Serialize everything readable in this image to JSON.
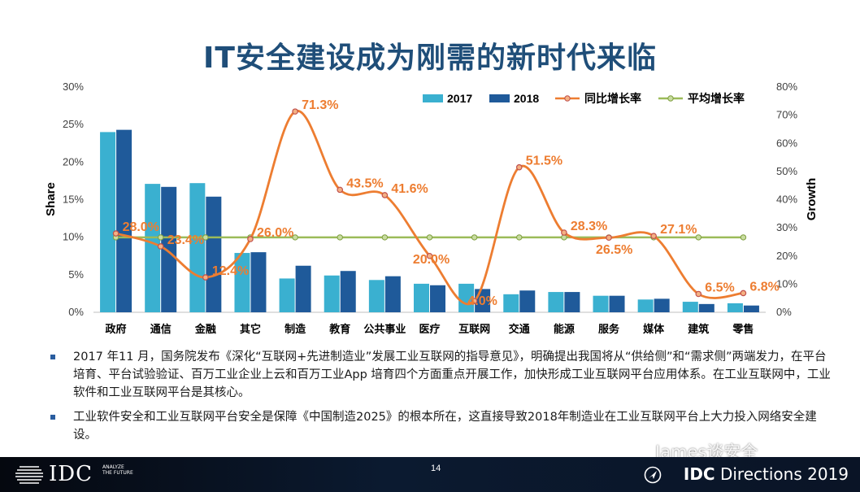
{
  "title": "IT安全建设成为刚需的新时代来临",
  "chart_data": {
    "type": "bar",
    "categories": [
      "政府",
      "通信",
      "金融",
      "其它",
      "制造",
      "教育",
      "公共事业",
      "医疗",
      "互联网",
      "交通",
      "能源",
      "服务",
      "媒体",
      "建筑",
      "零售"
    ],
    "series": [
      {
        "name": "2017",
        "axis": "left",
        "color": "#3ab0d0",
        "values": [
          24.0,
          17.1,
          17.2,
          7.9,
          4.5,
          4.9,
          4.3,
          3.8,
          3.8,
          2.4,
          2.7,
          2.2,
          1.7,
          1.4,
          1.2
        ]
      },
      {
        "name": "2018",
        "axis": "left",
        "color": "#1f5a9a",
        "values": [
          24.3,
          16.7,
          15.4,
          8.0,
          6.2,
          5.5,
          4.8,
          3.6,
          3.1,
          2.9,
          2.7,
          2.2,
          1.8,
          1.1,
          0.9
        ]
      },
      {
        "name": "同比增长率",
        "type": "line",
        "axis": "right",
        "color": "#ed7d31",
        "values": [
          28.0,
          23.4,
          12.4,
          26.0,
          71.3,
          43.5,
          41.6,
          20.0,
          4.0,
          51.5,
          28.3,
          26.5,
          27.1,
          6.5,
          6.8
        ]
      },
      {
        "name": "平均增长率",
        "type": "line",
        "axis": "right",
        "color": "#9bbb59",
        "values": [
          26.6,
          26.6,
          26.6,
          26.6,
          26.6,
          26.6,
          26.6,
          26.6,
          26.6,
          26.6,
          26.6,
          26.6,
          26.6,
          26.6,
          26.6
        ]
      }
    ],
    "growth_labels": [
      "28.0%",
      "23.4%",
      "12.4%",
      "26.0%",
      "71.3%",
      "43.5%",
      "41.6%",
      "20.0%",
      "4.0%",
      "51.5%",
      "28.3%",
      "26.5%",
      "27.1%",
      "6.5%",
      "6.8%"
    ],
    "ylabel": "Share",
    "y2label": "Growth",
    "ylim": [
      0,
      30
    ],
    "y2lim": [
      0,
      80
    ],
    "yticks": [
      "0%",
      "5%",
      "10%",
      "15%",
      "20%",
      "25%",
      "30%"
    ],
    "y2ticks": [
      "0%",
      "10%",
      "20%",
      "30%",
      "40%",
      "50%",
      "60%",
      "70%",
      "80%"
    ],
    "legend_placement": "top-right",
    "grid": false
  },
  "bullets": [
    "2017 年11 月，国务院发布《深化“互联网+先进制造业”发展工业互联网的指导意见》，明确提出我国将从“供给侧”和“需求侧”两端发力，在平台培育、平台试验验证、百万工业企业上云和百万工业App 培育四个方面重点开展工作，加快形成工业互联网平台应用体系。在工业互联网中，工业软件和工业互联网平台是其核心。",
    "工业软件安全和工业互联网平台安全是保障《中国制造2025》的根本所在，这直接导致2018年制造业在工业互联网平台上大力投入网络安全建设。"
  ],
  "footer": {
    "logo": "IDC",
    "tagline": "ANALYZE THE FUTURE",
    "page": "14",
    "brand_bold": "IDC",
    "brand_rest": " Directions 2019",
    "watermark": "James谈安全"
  }
}
